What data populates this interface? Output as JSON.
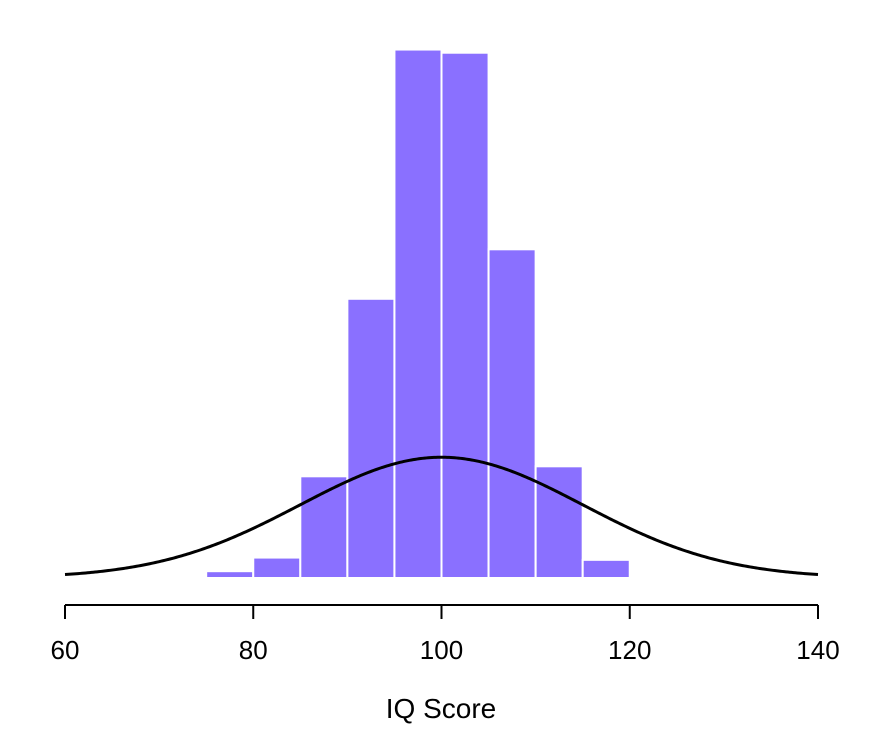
{
  "chart_data": {
    "type": "histogram",
    "title": "",
    "xlabel": "IQ Score",
    "ylabel": "",
    "xlim": [
      60,
      140
    ],
    "x_ticks": [
      "60",
      "80",
      "100",
      "120",
      "140"
    ],
    "y_axis_visible": false,
    "grid": false,
    "legend": "none",
    "bin_width": 5,
    "bins": [
      {
        "start": 75,
        "end": 80,
        "density": 0.0015
      },
      {
        "start": 80,
        "end": 85,
        "density": 0.0045
      },
      {
        "start": 85,
        "end": 90,
        "density": 0.0224
      },
      {
        "start": 90,
        "end": 95,
        "density": 0.0615
      },
      {
        "start": 95,
        "end": 100,
        "density": 0.1164
      },
      {
        "start": 100,
        "end": 105,
        "density": 0.1157
      },
      {
        "start": 105,
        "end": 110,
        "density": 0.0724
      },
      {
        "start": 110,
        "end": 115,
        "density": 0.0246
      },
      {
        "start": 115,
        "end": 120,
        "density": 0.004
      }
    ],
    "density_curve": {
      "distribution": "normal",
      "mean": 100,
      "sd": 15
    },
    "colors": {
      "bars": "#8a70ff",
      "bar_edges": "#ffffff",
      "curve": "#000000",
      "axis": "#000000"
    }
  }
}
